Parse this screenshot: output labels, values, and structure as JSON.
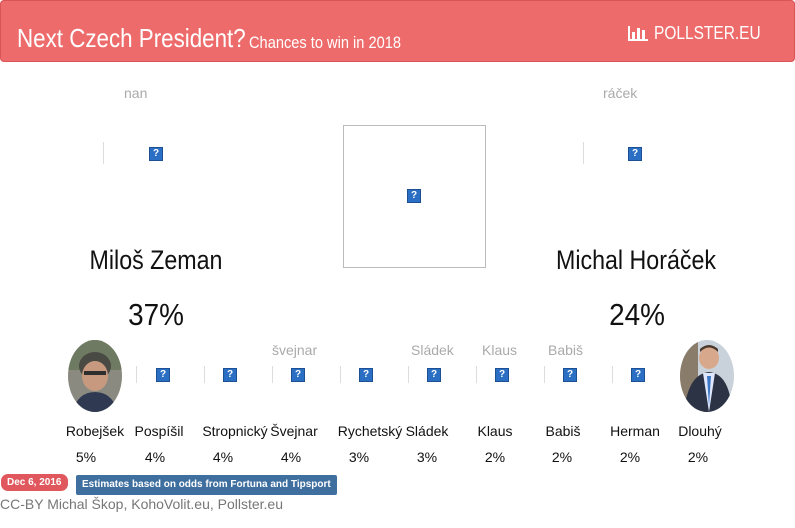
{
  "header": {
    "title": "Next Czech President?",
    "subtitle": "Chances to win in 2018",
    "brand": "POLLSTER.EU",
    "brand_icon": "bar-chart-icon",
    "background": "#ee6b6b"
  },
  "leaders": [
    {
      "alt": "nan",
      "name": "Miloš Zeman",
      "pct": "37%"
    },
    {
      "alt": "ráček",
      "name": "Michal Horáček",
      "pct": "24%"
    }
  ],
  "candidates": [
    {
      "name": "Robejšek",
      "pct": "5%",
      "alt": ""
    },
    {
      "name": "Pospíšil",
      "pct": "4%",
      "alt": ""
    },
    {
      "name": "Stropnický",
      "pct": "4%",
      "alt": ""
    },
    {
      "name": "Švejnar",
      "pct": "4%",
      "alt": "švejnar"
    },
    {
      "name": "Rychetský",
      "pct": "3%",
      "alt": ""
    },
    {
      "name": "Sládek",
      "pct": "3%",
      "alt": "Sládek"
    },
    {
      "name": "Klaus",
      "pct": "2%",
      "alt": "Klaus"
    },
    {
      "name": "Babiš",
      "pct": "2%",
      "alt": "Babiš"
    },
    {
      "name": "Herman",
      "pct": "2%",
      "alt": ""
    },
    {
      "name": "Dlouhý",
      "pct": "2%",
      "alt": ""
    }
  ],
  "footer": {
    "date": "Dec 6, 2016",
    "note": "Estimates based on odds from Fortuna and Tipsport",
    "credits": "CC-BY Michal Škop, KohoVolit.eu, Pollster.eu",
    "date_color": "#e0585d",
    "note_color": "#3f6f9f"
  }
}
